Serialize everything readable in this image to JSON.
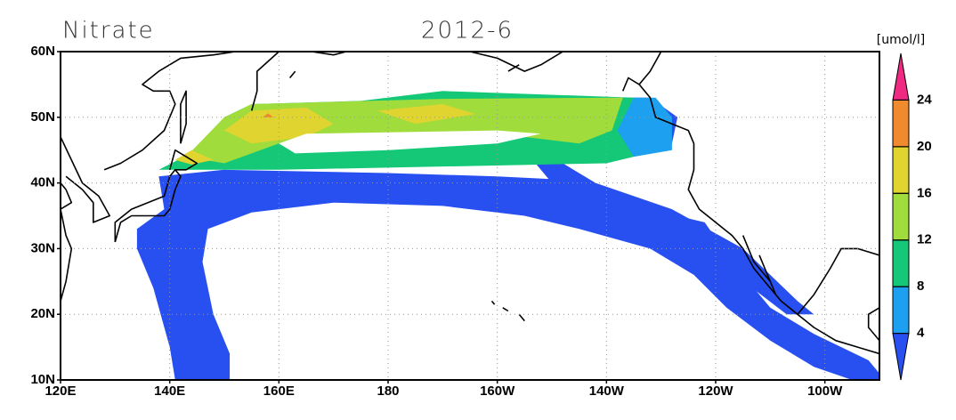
{
  "map": {
    "title": "Nitrate",
    "subtitle": "2012-6",
    "unit": "[umol/l]",
    "xlim": [
      120,
      270
    ],
    "ylim": [
      10,
      60
    ],
    "xticks": [
      {
        "value": 120,
        "label": "120E"
      },
      {
        "value": 140,
        "label": "140E"
      },
      {
        "value": 160,
        "label": "160E"
      },
      180,
      {
        "value": 200,
        "label": "160W"
      },
      {
        "value": 220,
        "label": "140W"
      },
      {
        "value": 240,
        "label": "120W"
      },
      {
        "value": 260,
        "label": "100W"
      }
    ],
    "yticks": [
      {
        "value": 10,
        "label": "10N"
      },
      {
        "value": 20,
        "label": "20N"
      },
      {
        "value": 30,
        "label": "30N"
      },
      {
        "value": 40,
        "label": "40N"
      },
      {
        "value": 50,
        "label": "50N"
      },
      {
        "value": 60,
        "label": "60N"
      }
    ],
    "grid": true,
    "colorbar": {
      "levels": [
        4,
        8,
        12,
        16,
        20,
        24
      ],
      "colors": [
        "#2850f0",
        "#1ea0f0",
        "#14c878",
        "#a0dc3c",
        "#e0d430",
        "#ef8a2e",
        "#ef2a82"
      ]
    }
  }
}
